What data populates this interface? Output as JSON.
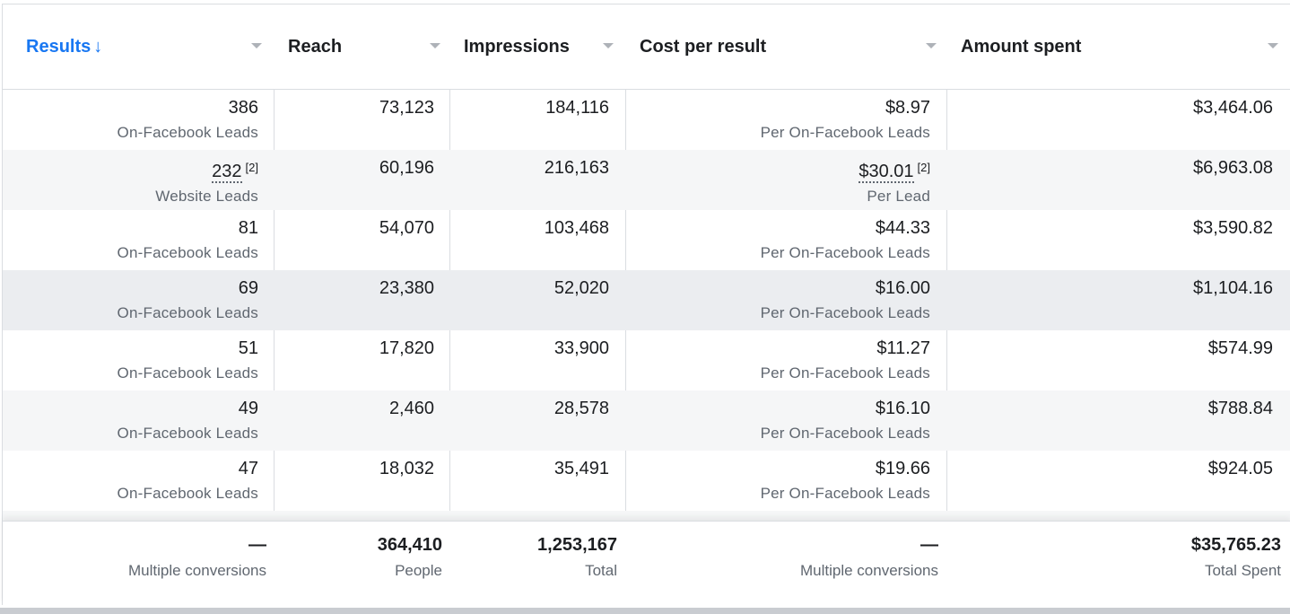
{
  "columns": {
    "results": "Results",
    "sort_indicator": "↓",
    "reach": "Reach",
    "impressions": "Impressions",
    "cost_per_result": "Cost per result",
    "amount_spent": "Amount spent"
  },
  "rows": [
    {
      "results": "386",
      "result_type": "On-Facebook Leads",
      "reach": "73,123",
      "impressions": "184,116",
      "cost": "$8.97",
      "cost_type": "Per On-Facebook Leads",
      "spent": "$3,464.06"
    },
    {
      "results": "232",
      "result_note": "[2]",
      "result_type": "Website Leads",
      "reach": "60,196",
      "impressions": "216,163",
      "cost": "$30.01",
      "cost_note": "[2]",
      "cost_type": "Per Lead",
      "spent": "$6,963.08"
    },
    {
      "results": "81",
      "result_type": "On-Facebook Leads",
      "reach": "54,070",
      "impressions": "103,468",
      "cost": "$44.33",
      "cost_type": "Per On-Facebook Leads",
      "spent": "$3,590.82"
    },
    {
      "results": "69",
      "result_type": "On-Facebook Leads",
      "reach": "23,380",
      "impressions": "52,020",
      "cost": "$16.00",
      "cost_type": "Per On-Facebook Leads",
      "spent": "$1,104.16"
    },
    {
      "results": "51",
      "result_type": "On-Facebook Leads",
      "reach": "17,820",
      "impressions": "33,900",
      "cost": "$11.27",
      "cost_type": "Per On-Facebook Leads",
      "spent": "$574.99"
    },
    {
      "results": "49",
      "result_type": "On-Facebook Leads",
      "reach": "2,460",
      "impressions": "28,578",
      "cost": "$16.10",
      "cost_type": "Per On-Facebook Leads",
      "spent": "$788.84"
    },
    {
      "results": "47",
      "result_type": "On-Facebook Leads",
      "reach": "18,032",
      "impressions": "35,491",
      "cost": "$19.66",
      "cost_type": "Per On-Facebook Leads",
      "spent": "$924.05"
    }
  ],
  "totals": {
    "results": "—",
    "results_label": "Multiple conversions",
    "reach": "364,410",
    "reach_label": "People",
    "impressions": "1,253,167",
    "impressions_label": "Total",
    "cost": "—",
    "cost_label": "Multiple conversions",
    "spent": "$35,765.23",
    "spent_label": "Total Spent"
  },
  "colors": {
    "accent": "#1877f2",
    "row_alt": "#f5f6f7",
    "row_hover": "#ebedf0",
    "border": "#dadde1",
    "secondary_text": "#606770"
  },
  "icons": {
    "column_menu": "caret-down-icon"
  }
}
